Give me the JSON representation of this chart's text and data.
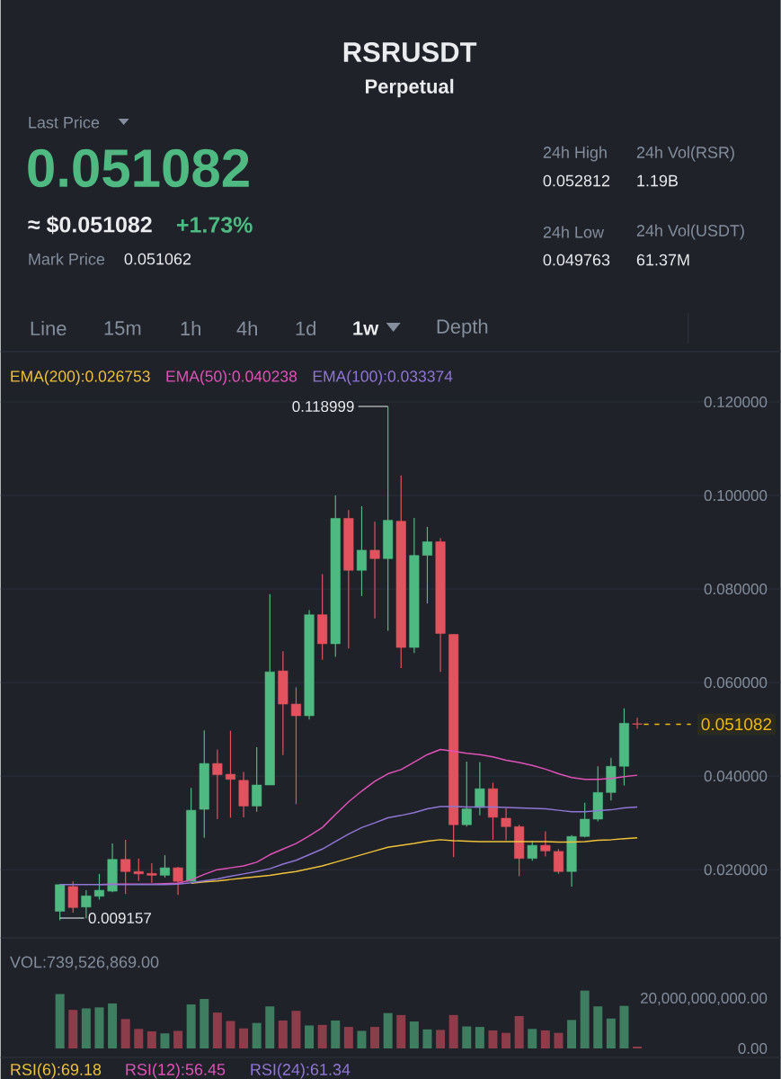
{
  "chart_data": [
    {
      "type": "candlestick",
      "title": "RSRUSDT",
      "subtitle": "Perpetual",
      "annotations": [
        "Last Price",
        "0.051082",
        "≈ $0.051082",
        "+1.73%",
        "Mark Price",
        "0.051062",
        "24h High",
        "0.052812",
        "24h Vol(RSR)",
        "1.19B",
        "24h Low",
        "0.049763",
        "24h Vol(USDT)",
        "61.37M",
        "Line",
        "15m",
        "1h",
        "4h",
        "1d",
        "1w",
        "Depth",
        "0.118999",
        "0.009157"
      ],
      "categories": [
        null,
        null,
        null,
        null,
        null,
        null,
        null,
        null,
        null,
        null,
        null,
        null,
        null,
        null,
        null,
        null,
        null,
        null,
        null,
        null,
        null,
        null,
        null,
        null,
        null,
        null,
        null,
        null,
        null,
        null,
        null,
        null,
        null,
        null,
        null,
        null,
        null,
        null,
        null,
        null,
        null,
        null,
        null,
        null,
        null
      ],
      "ohlc": [
        [
          0.0111,
          0.0169,
          0.009157,
          0.0168
        ],
        [
          0.0164,
          0.0175,
          0.0108,
          0.0119
        ],
        [
          0.012,
          0.0156,
          0.0096,
          0.0144
        ],
        [
          0.0143,
          0.0191,
          0.0136,
          0.0156
        ],
        [
          0.0154,
          0.0256,
          0.0152,
          0.0222
        ],
        [
          0.0222,
          0.0264,
          0.0148,
          0.0196
        ],
        [
          0.0196,
          0.0224,
          0.0176,
          0.0191
        ],
        [
          0.0192,
          0.0214,
          0.0172,
          0.0188
        ],
        [
          0.0188,
          0.0231,
          0.0183,
          0.0204
        ],
        [
          0.0204,
          0.0206,
          0.0146,
          0.0175
        ],
        [
          0.0175,
          0.0375,
          0.0175,
          0.0327
        ],
        [
          0.0329,
          0.0498,
          0.0268,
          0.0427
        ],
        [
          0.0427,
          0.0457,
          0.0308,
          0.0403
        ],
        [
          0.0404,
          0.0497,
          0.0311,
          0.0393
        ],
        [
          0.0391,
          0.0409,
          0.0312,
          0.0336
        ],
        [
          0.0336,
          0.0462,
          0.0324,
          0.0381
        ],
        [
          0.0381,
          0.0789,
          0.0381,
          0.0623
        ],
        [
          0.0625,
          0.0667,
          0.0445,
          0.0554
        ],
        [
          0.0554,
          0.059,
          0.034,
          0.0529
        ],
        [
          0.0529,
          0.0755,
          0.0521,
          0.0745
        ],
        [
          0.0745,
          0.0832,
          0.0649,
          0.0683
        ],
        [
          0.0683,
          0.1,
          0.0655,
          0.0951
        ],
        [
          0.0951,
          0.0969,
          0.0673,
          0.084
        ],
        [
          0.084,
          0.0977,
          0.0785,
          0.0883
        ],
        [
          0.0883,
          0.0944,
          0.0737,
          0.0865
        ],
        [
          0.0865,
          0.118999,
          0.0711,
          0.0947
        ],
        [
          0.0945,
          0.1043,
          0.0631,
          0.0675
        ],
        [
          0.0675,
          0.0952,
          0.0663,
          0.0872
        ],
        [
          0.0872,
          0.0933,
          0.0769,
          0.0901
        ],
        [
          0.0901,
          0.0909,
          0.0623,
          0.0705
        ],
        [
          0.0703,
          0.0703,
          0.0227,
          0.0296
        ],
        [
          0.0296,
          0.0431,
          0.0292,
          0.033
        ],
        [
          0.0333,
          0.043,
          0.0316,
          0.0373
        ],
        [
          0.0373,
          0.0386,
          0.0264,
          0.0312
        ],
        [
          0.031,
          0.0332,
          0.0263,
          0.0292
        ],
        [
          0.0292,
          0.0296,
          0.0186,
          0.0224
        ],
        [
          0.0224,
          0.0262,
          0.0219,
          0.0252
        ],
        [
          0.0252,
          0.0282,
          0.0228,
          0.024
        ],
        [
          0.0239,
          0.0244,
          0.0191,
          0.0196
        ],
        [
          0.0196,
          0.0274,
          0.0164,
          0.0271
        ],
        [
          0.0271,
          0.0343,
          0.0269,
          0.0308
        ],
        [
          0.0308,
          0.0421,
          0.0303,
          0.0365
        ],
        [
          0.0365,
          0.0439,
          0.0348,
          0.0421
        ],
        [
          0.0421,
          0.0545,
          0.038,
          0.0513
        ],
        [
          0.0512,
          0.0525,
          0.0501,
          0.051082
        ]
      ],
      "colors": [
        "#4fb982",
        "#e2535f",
        "#4fb982",
        "#4fb982",
        "#4fb982",
        "#e2535f",
        "#e2535f",
        "#e2535f",
        "#4fb982",
        "#e2535f",
        "#4fb982",
        "#4fb982",
        "#e2535f",
        "#e2535f",
        "#e2535f",
        "#4fb982",
        "#4fb982",
        "#e2535f",
        "#e2535f",
        "#4fb982",
        "#e2535f",
        "#4fb982",
        "#e2535f",
        "#4fb982",
        "#e2535f",
        "#4fb982",
        "#e2535f",
        "#4fb982",
        "#4fb982",
        "#e2535f",
        "#e2535f",
        "#4fb982",
        "#4fb982",
        "#e2535f",
        "#e2535f",
        "#e2535f",
        "#4fb982",
        "#e2535f",
        "#e2535f",
        "#4fb982",
        "#4fb982",
        "#4fb982",
        "#4fb982",
        "#4fb982",
        "#e2535f"
      ],
      "series": [
        {
          "name": "EMA(200):0.026753",
          "type": "line",
          "color": "#f0c23a",
          "values": [
            null,
            null,
            null,
            null,
            null,
            null,
            null,
            null,
            null,
            null,
            0.0171,
            0.0174,
            0.0176,
            0.0179,
            0.0182,
            0.0185,
            0.0188,
            0.0192,
            0.0196,
            0.0202,
            0.0208,
            0.0216,
            0.0224,
            0.0232,
            0.024,
            0.0248,
            0.0252,
            0.0256,
            0.0261,
            0.0264,
            0.0262,
            0.0261,
            0.026,
            0.026,
            0.026,
            0.026,
            0.026,
            0.026,
            0.0259,
            0.0259,
            0.026,
            0.0263,
            0.0264,
            0.0266,
            0.0268
          ]
        },
        {
          "name": "EMA(50):0.040238",
          "type": "line",
          "color": "#e052b8",
          "values": [
            null,
            null,
            null,
            0.0168,
            0.0169,
            0.0169,
            0.0169,
            0.0169,
            0.017,
            0.0171,
            0.0178,
            0.019,
            0.02,
            0.0204,
            0.0208,
            0.0216,
            0.0232,
            0.0244,
            0.0256,
            0.0272,
            0.029,
            0.0318,
            0.0345,
            0.0368,
            0.0389,
            0.0405,
            0.0414,
            0.043,
            0.0446,
            0.0457,
            0.0453,
            0.0449,
            0.0446,
            0.0441,
            0.0434,
            0.0429,
            0.0423,
            0.0415,
            0.0405,
            0.0397,
            0.0393,
            0.0393,
            0.0395,
            0.0399,
            0.0402
          ]
        },
        {
          "name": "EMA(100):0.033374",
          "type": "line",
          "color": "#9076d6",
          "values": [
            0.0168,
            0.0168,
            0.0168,
            0.0168,
            0.0168,
            0.0168,
            0.0168,
            0.0168,
            0.0168,
            0.0169,
            0.0172,
            0.0176,
            0.018,
            0.0186,
            0.0191,
            0.0196,
            0.0202,
            0.0212,
            0.022,
            0.0232,
            0.0244,
            0.026,
            0.0276,
            0.029,
            0.03,
            0.0311,
            0.0316,
            0.0322,
            0.033,
            0.0335,
            0.0335,
            0.0334,
            0.0334,
            0.0334,
            0.0333,
            0.0332,
            0.0331,
            0.033,
            0.0327,
            0.0324,
            0.0324,
            0.0326,
            0.0328,
            0.0332,
            0.0334
          ]
        }
      ],
      "ylim": [
        0.006,
        0.12
      ],
      "yticks": [
        {
          "value": 0.02,
          "label": "0.020000"
        },
        {
          "value": 0.04,
          "label": "0.040000"
        },
        {
          "value": 0.06,
          "label": "0.060000"
        },
        {
          "value": 0.08,
          "label": "0.080000"
        },
        {
          "value": 0.1,
          "label": "0.100000"
        },
        {
          "value": 0.12,
          "label": "0.120000"
        }
      ],
      "grid": "y",
      "legend": "top",
      "ref_lines": [
        {
          "axis": "y",
          "value": 0.051082,
          "label": "0.051082",
          "color": "#f0b90b",
          "line_style": "dashed"
        }
      ]
    },
    {
      "type": "bar",
      "title": "VOL:739,526,869.00",
      "annotations": [
        "RSI(6):69.18",
        "RSI(12):56.45",
        "RSI(24):61.34"
      ],
      "categories": [
        null,
        null,
        null,
        null,
        null,
        null,
        null,
        null,
        null,
        null,
        null,
        null,
        null,
        null,
        null,
        null,
        null,
        null,
        null,
        null,
        null,
        null,
        null,
        null,
        null,
        null,
        null,
        null,
        null,
        null,
        null,
        null,
        null,
        null,
        null,
        null,
        null,
        null,
        null,
        null,
        null,
        null,
        null,
        null,
        null
      ],
      "values": [
        22000000000,
        15600000000,
        16200000000,
        16600000000,
        18200000000,
        11900000000,
        7900000000,
        6900000000,
        6100000000,
        7100000000,
        17800000000,
        20000000000,
        14500000000,
        11100000000,
        8100000000,
        10300000000,
        17000000000,
        11300000000,
        15200000000,
        9300000000,
        9500000000,
        11300000000,
        8700000000,
        7100000000,
        8700000000,
        14300000000,
        13500000000,
        10900000000,
        7700000000,
        7500000000,
        13500000000,
        8900000000,
        8700000000,
        7300000000,
        6300000000,
        13100000000,
        7900000000,
        7300000000,
        6300000000,
        11500000000,
        23400000000,
        17000000000,
        12100000000,
        17200000000,
        740000000
      ],
      "colors": [
        "#3f7d61",
        "#8d3c4a",
        "#3f7d61",
        "#3f7d61",
        "#3f7d61",
        "#8d3c4a",
        "#8d3c4a",
        "#8d3c4a",
        "#3f7d61",
        "#8d3c4a",
        "#3f7d61",
        "#3f7d61",
        "#8d3c4a",
        "#8d3c4a",
        "#8d3c4a",
        "#3f7d61",
        "#3f7d61",
        "#8d3c4a",
        "#8d3c4a",
        "#3f7d61",
        "#8d3c4a",
        "#3f7d61",
        "#8d3c4a",
        "#3f7d61",
        "#8d3c4a",
        "#3f7d61",
        "#8d3c4a",
        "#3f7d61",
        "#3f7d61",
        "#8d3c4a",
        "#8d3c4a",
        "#3f7d61",
        "#3f7d61",
        "#8d3c4a",
        "#8d3c4a",
        "#8d3c4a",
        "#3f7d61",
        "#8d3c4a",
        "#8d3c4a",
        "#3f7d61",
        "#3f7d61",
        "#3f7d61",
        "#3f7d61",
        "#3f7d61",
        "#8d3c4a"
      ],
      "ylim": [
        0,
        44000000000
      ],
      "yticks": [
        {
          "value": 0,
          "label": "0.00"
        },
        {
          "value": 20000000000,
          "label": "20,000,000,000.00"
        }
      ]
    }
  ]
}
